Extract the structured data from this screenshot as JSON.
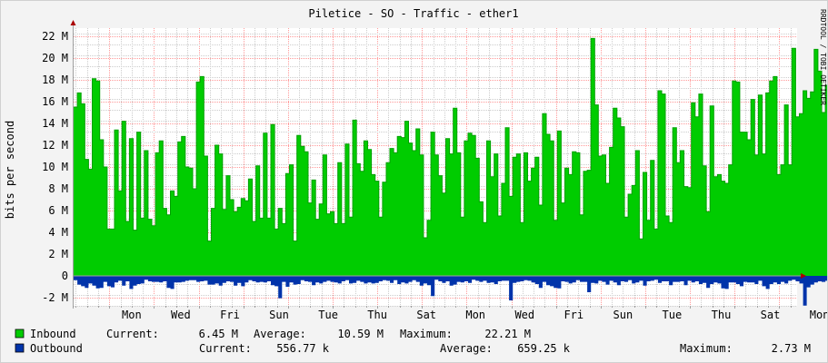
{
  "chart_data": {
    "type": "area",
    "title": "Piletice - SO - Traffic - ether1",
    "ylabel": "bits per second",
    "watermark": "RRDTOOL / TOBI OETIKER",
    "ylim": [
      -2.75,
      22.75
    ],
    "y_ticks": [
      {
        "value": -2,
        "label": "-2 M"
      },
      {
        "value": 0,
        "label": "0"
      },
      {
        "value": 2,
        "label": "2 M"
      },
      {
        "value": 4,
        "label": "4 M"
      },
      {
        "value": 6,
        "label": "6 M"
      },
      {
        "value": 8,
        "label": "8 M"
      },
      {
        "value": 10,
        "label": "10 M"
      },
      {
        "value": 12,
        "label": "12 M"
      },
      {
        "value": 14,
        "label": "14 M"
      },
      {
        "value": 16,
        "label": "16 M"
      },
      {
        "value": 18,
        "label": "18 M"
      },
      {
        "value": 20,
        "label": "20 M"
      },
      {
        "value": 22,
        "label": "22 M"
      }
    ],
    "x_ticks": [
      "Mon",
      "Wed",
      "Fri",
      "Sun",
      "Tue",
      "Thu",
      "Sat",
      "Mon",
      "Wed",
      "Fri",
      "Sun",
      "Tue",
      "Thu",
      "Sat",
      "Mon"
    ],
    "x_unit": "day",
    "x_range_days": [
      -0.8,
      15.4
    ],
    "grid": true,
    "series": [
      {
        "name": "Inbound",
        "color": "#00cc00",
        "edge_color": "#00a000",
        "points_per_day": 12,
        "values_Mbps": [
          15.5,
          16.8,
          15.8,
          10.7,
          9.8,
          18.1,
          17.9,
          12.5,
          10,
          4.3,
          4.3,
          13.4,
          7.8,
          14.2,
          5,
          12.6,
          4.2,
          13.2,
          5.3,
          11.5,
          5.2,
          4.6,
          11.3,
          12.4,
          6.2,
          5.6,
          7.8,
          7.3,
          12.3,
          12.8,
          10,
          9.9,
          8,
          17.8,
          18.3,
          11,
          3.2,
          6.2,
          12,
          11.2,
          6.1,
          9.2,
          7,
          5.9,
          6.3,
          7.1,
          6.9,
          8.9,
          5,
          10.1,
          5.3,
          13.1,
          5.3,
          13.9,
          4.3,
          6.2,
          4.8,
          9.4,
          10.2,
          3.2,
          12.9,
          11.9,
          11.4,
          6.7,
          8.8,
          5.2,
          6.6,
          11.1,
          5.7,
          5.9,
          4.8,
          10.4,
          4.8,
          12.1,
          5.4,
          14.3,
          10.3,
          9.6,
          12.4,
          11.6,
          9.3,
          8.7,
          5.4,
          8.6,
          10.4,
          11.7,
          11.3,
          12.8,
          12.7,
          14.2,
          12.2,
          11.5,
          13.5,
          11.1,
          3.5,
          5.1,
          13.2,
          11.1,
          9.2,
          7.6,
          12.6,
          11.2,
          15.4,
          11.3,
          5.4,
          12.4,
          13.1,
          12.9,
          10.8,
          6.8,
          4.9,
          12.4,
          9.1,
          11.2,
          5.5,
          8.5,
          13.6,
          7.3,
          10.9,
          11.2,
          4.9,
          11.3,
          8.7,
          9.9,
          10.9,
          6.5,
          14.9,
          13,
          12.4,
          5.1,
          13.3,
          6.7,
          9.9,
          9.3,
          11.4,
          11.3,
          5.6,
          9.6,
          9.7,
          21.8,
          15.7,
          11,
          11.1,
          8.5,
          11.8,
          15.4,
          14.5,
          13.7,
          5.4,
          7.5,
          8.3,
          11.5,
          3.4,
          9.5,
          5.1,
          10.6,
          4.3,
          17,
          16.7,
          5.5,
          4.9,
          13.6,
          10.4,
          11.5,
          8.2,
          8.1,
          15.9,
          14.6,
          16.7,
          10.1,
          5.9,
          15.6,
          9.1,
          9.3,
          8.7,
          8.5,
          10.2,
          17.9,
          17.8,
          13.2,
          13.2,
          12.5,
          16.2,
          11.1,
          16.6,
          11.2,
          16.8,
          17.9,
          18.3,
          9.3,
          10.2,
          15.7,
          10.2,
          20.9,
          14.6,
          14.9,
          17,
          16.3,
          16.9,
          20.8,
          18.8,
          15,
          17.5,
          17.6,
          19.9,
          15.6,
          11.9,
          12.1,
          11.7,
          9.2,
          6.3,
          5.3,
          7.6,
          10.1,
          6.6,
          6.4
        ]
      },
      {
        "name": "Outbound",
        "color": "#0033aa",
        "points_per_day": 12,
        "values_Mbps": [
          0.4,
          0.8,
          0.95,
          1.1,
          0.7,
          0.9,
          1.15,
          1.1,
          0.55,
          0.95,
          1.05,
          0.6,
          0.45,
          0.9,
          0.5,
          1.2,
          0.9,
          0.75,
          0.7,
          0.35,
          0.5,
          0.55,
          0.55,
          0.6,
          0.5,
          1.1,
          1.2,
          0.6,
          0.6,
          0.55,
          0.45,
          0.4,
          0.4,
          0.55,
          0.5,
          0.45,
          0.8,
          0.8,
          0.7,
          0.9,
          0.65,
          0.5,
          0.55,
          0.9,
          0.65,
          0.95,
          0.6,
          0.4,
          0.5,
          0.6,
          0.55,
          0.6,
          0.5,
          0.85,
          0.95,
          2.05,
          0.55,
          1,
          0.6,
          0.8,
          0.75,
          0.4,
          0.5,
          0.55,
          0.85,
          0.6,
          0.7,
          0.55,
          0.45,
          0.55,
          0.6,
          0.7,
          0.5,
          0.4,
          0.7,
          0.65,
          0.45,
          0.55,
          0.7,
          0.6,
          0.7,
          0.65,
          0.5,
          0.4,
          0.45,
          0.65,
          0.4,
          0.75,
          0.6,
          0.7,
          0.55,
          0.4,
          0.55,
          0.9,
          0.7,
          0.85,
          1.85,
          0.35,
          0.5,
          0.65,
          0.5,
          0.9,
          0.8,
          0.55,
          0.6,
          0.5,
          0.65,
          0.35,
          0.45,
          0.55,
          0.45,
          0.65,
          0.6,
          0.75,
          0.5,
          0.45,
          0.45,
          2.25,
          0.65,
          0.55,
          0.5,
          0.4,
          0.45,
          0.6,
          0.75,
          1.1,
          0.55,
          0.85,
          0.95,
          1.1,
          1.15,
          0.5,
          0.55,
          0.7,
          0.6,
          0.4,
          0.55,
          0.55,
          1.5,
          0.65,
          0.7,
          0.45,
          0.55,
          0.8,
          0.45,
          0.6,
          0.85,
          0.5,
          0.55,
          0.4,
          0.7,
          0.6,
          0.45,
          0.9,
          0.5,
          0.45,
          0.35,
          0.65,
          0.5,
          0.5,
          0.85,
          0.55,
          0.55,
          0.5,
          0.85,
          0.45,
          0.6,
          0.5,
          0.75,
          0.65,
          1.1,
          0.75,
          0.6,
          0.7,
          1.15,
          1.2,
          0.6,
          0.6,
          0.75,
          0.95,
          0.55,
          0.6,
          0.6,
          0.75,
          0.45,
          0.95,
          1.2,
          0.75,
          0.6,
          0.75,
          0.55,
          0.7,
          0.45,
          0.35,
          0.5,
          0.7,
          2.73,
          1.05,
          0.8,
          0.6,
          0.5,
          0.55,
          0.45,
          0.7,
          0.6,
          0.4,
          0.95,
          0.6,
          0.45,
          0.6,
          0.55,
          0.55,
          0.4,
          0.7,
          0.65,
          0.45
        ]
      }
    ],
    "legend": {
      "position": "bottom",
      "rows": [
        {
          "name": "Inbound",
          "color": "#00cc00",
          "current_label": "Current:",
          "current": "6.45 M",
          "average_label": "Average:",
          "average": "10.59 M",
          "maximum_label": "Maximum:",
          "maximum": "22.21 M"
        },
        {
          "name": "Outbound",
          "color": "#0033aa",
          "current_label": "Current:",
          "current": "556.77 k",
          "average_label": "Average:",
          "average": "659.25 k",
          "maximum_label": "Maximum:",
          "maximum": "2.73 M"
        }
      ]
    },
    "colors": {
      "background": "#f3f3f3",
      "canvas": "#ffffff",
      "major_grid": "#ff9999",
      "minor_grid": "#cccccc",
      "axis": "#a0a0a0",
      "arrow": "#aa0000",
      "watermark": "#999999"
    }
  }
}
